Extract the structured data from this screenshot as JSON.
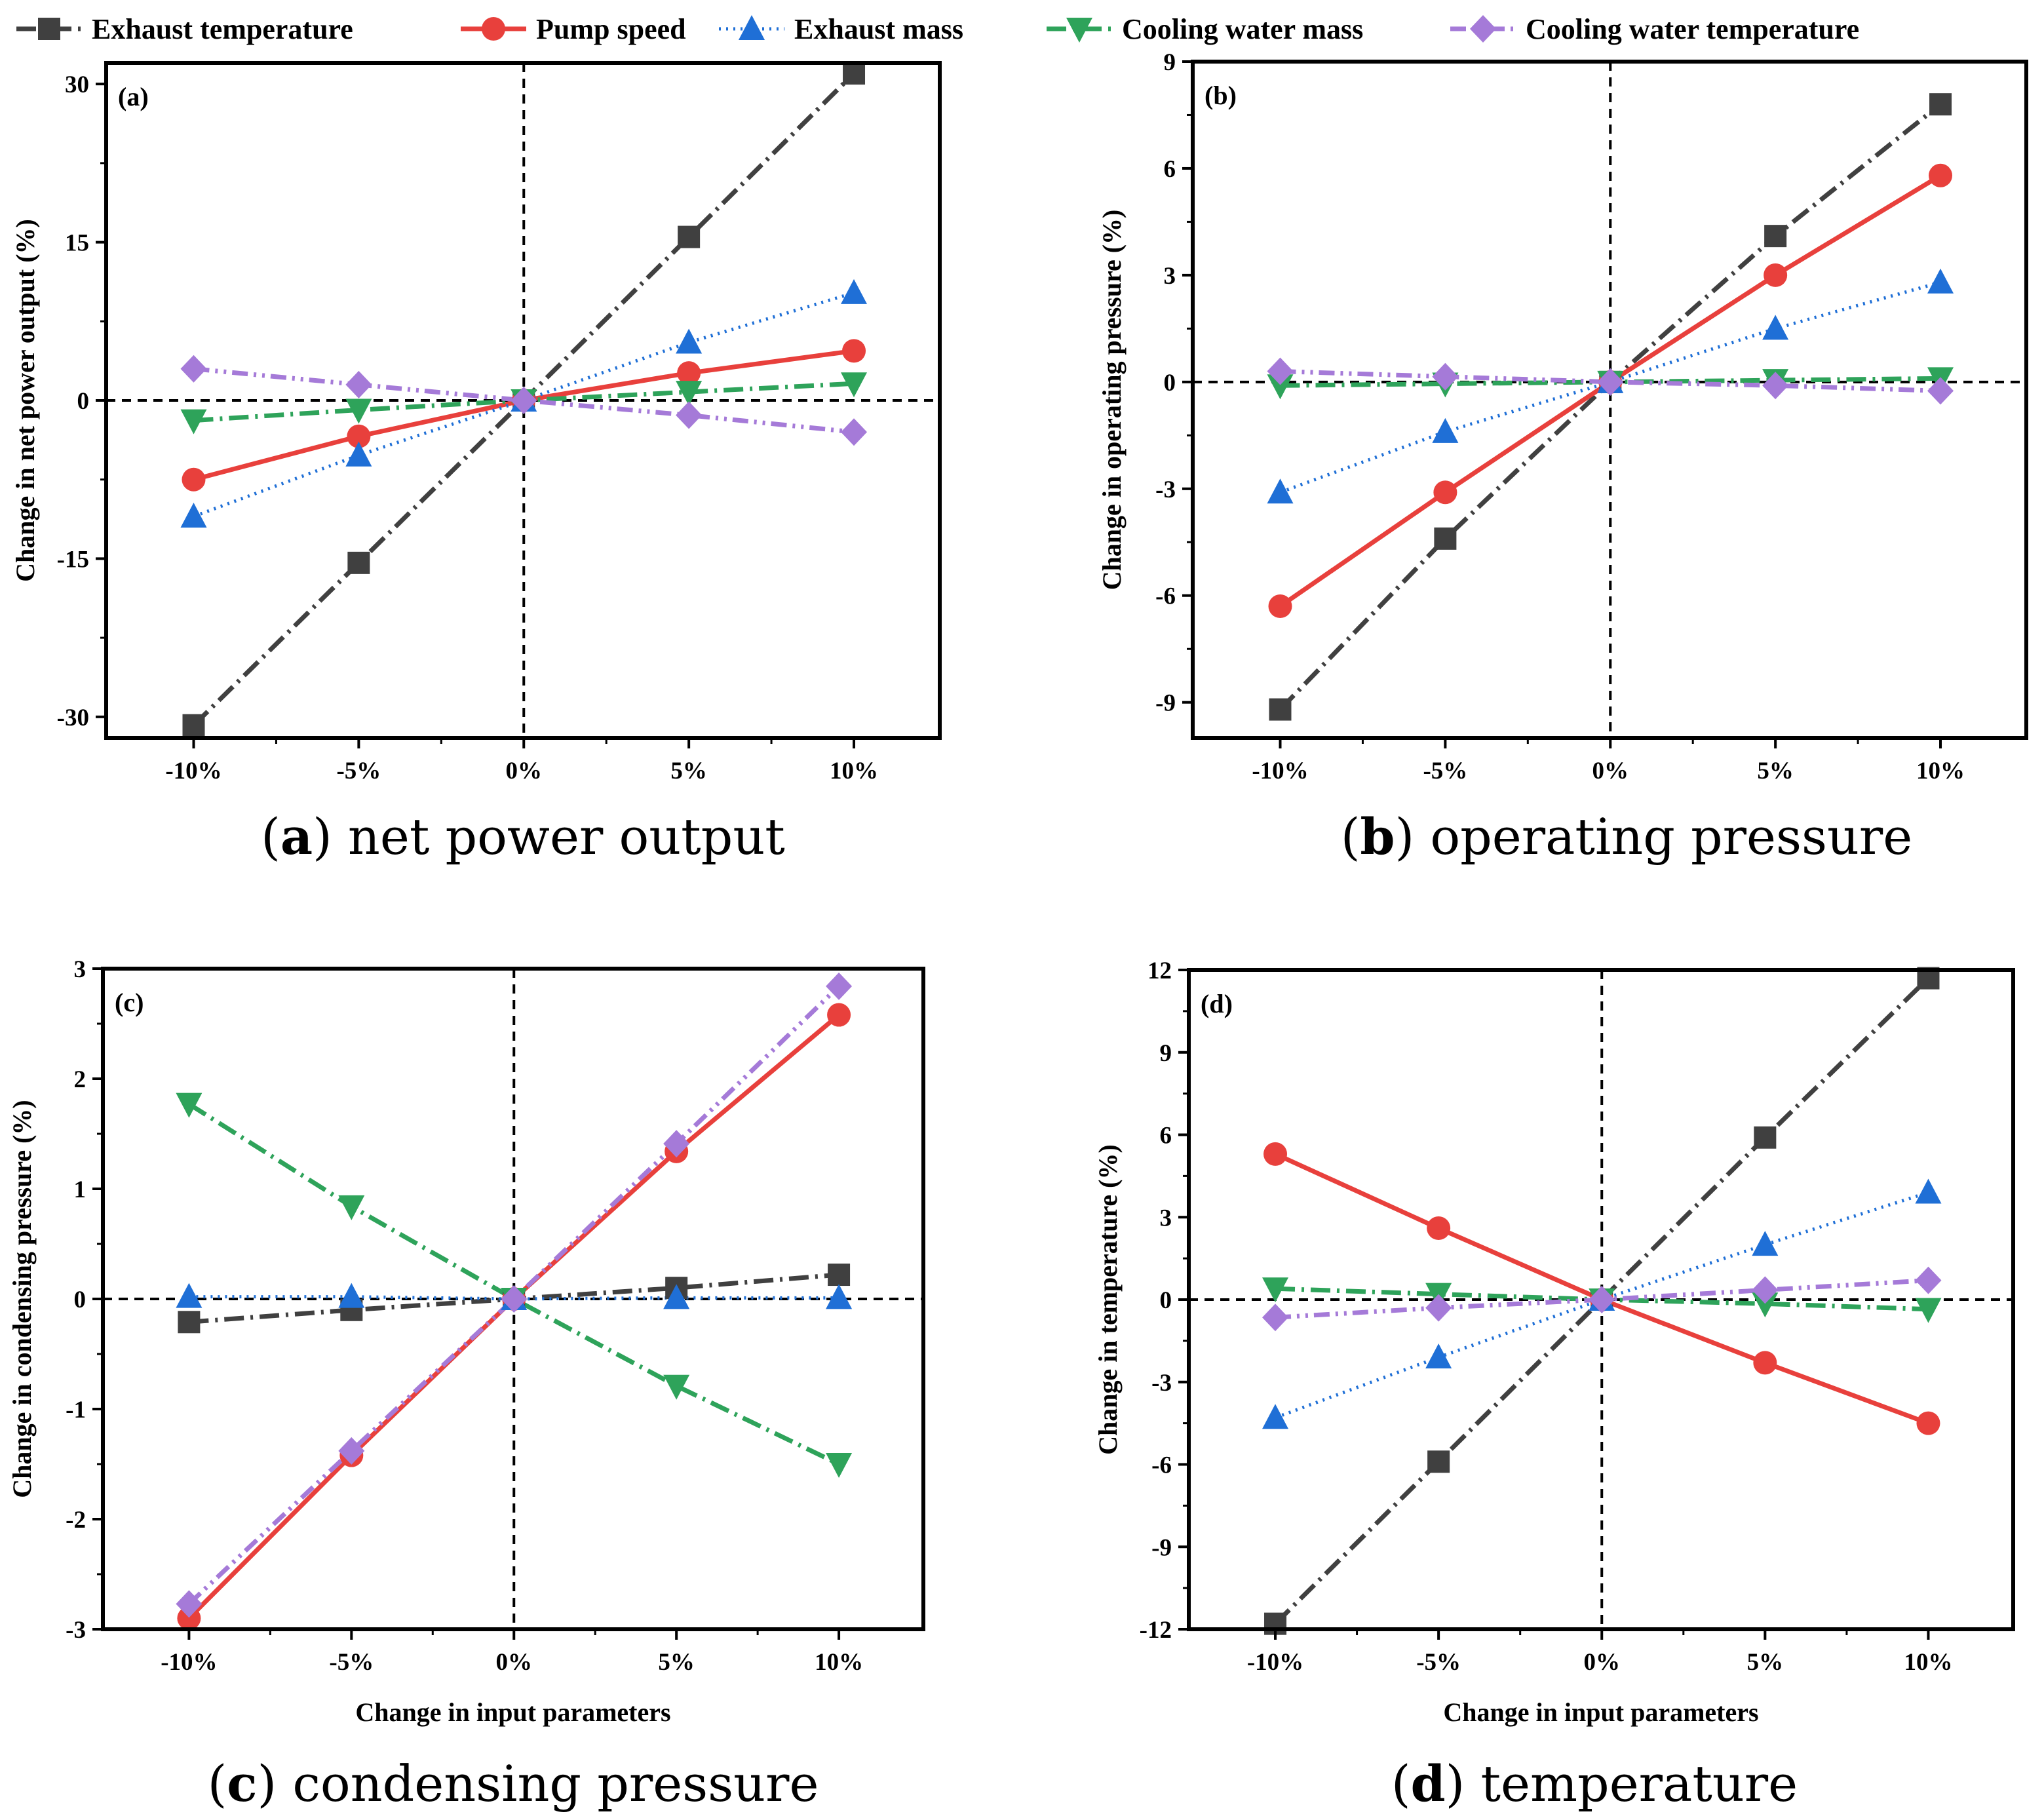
{
  "legend": [
    {
      "name": "Exhaust temperature",
      "color": "#404040",
      "marker": "square",
      "dash": "dash-dot"
    },
    {
      "name": "Pump speed",
      "color": "#e8403c",
      "marker": "circle",
      "dash": "solid"
    },
    {
      "name": "Exhaust mass",
      "color": "#1f6fd6",
      "marker": "triangle-up",
      "dash": "dot"
    },
    {
      "name": "Cooling water mass",
      "color": "#2ea35a",
      "marker": "triangle-down",
      "dash": "dash-dot"
    },
    {
      "name": "Cooling water temperature",
      "color": "#a57ad8",
      "marker": "diamond",
      "dash": "dash-dot-dot"
    }
  ],
  "chart_data": [
    {
      "type": "line",
      "tag": "(a)",
      "caption": {
        "letter": "a",
        "text": "net power output"
      },
      "categories": [
        "-10%",
        "-5%",
        "0%",
        "5%",
        "10%"
      ],
      "xlabel": "",
      "ylabel": "Change in net power output (%)",
      "ylim": [
        -32,
        32
      ],
      "yticks": [
        -30,
        -15,
        0,
        15,
        30
      ],
      "yticklabels": [
        "-30",
        "-15",
        "0",
        "15",
        "30"
      ],
      "series": [
        {
          "name": "Exhaust temperature",
          "values": [
            -30.8,
            -15.4,
            0,
            15.5,
            31
          ]
        },
        {
          "name": "Pump speed",
          "values": [
            -7.5,
            -3.4,
            0,
            2.6,
            4.7
          ]
        },
        {
          "name": "Exhaust mass",
          "values": [
            -11,
            -5.2,
            0,
            5.5,
            10.2
          ]
        },
        {
          "name": "Cooling water mass",
          "values": [
            -1.9,
            -0.9,
            0,
            0.8,
            1.6
          ]
        },
        {
          "name": "Cooling water temperature",
          "values": [
            3,
            1.5,
            0,
            -1.4,
            -3
          ]
        }
      ]
    },
    {
      "type": "line",
      "tag": "(b)",
      "caption": {
        "letter": "b",
        "text": "operating pressure"
      },
      "categories": [
        "-10%",
        "-5%",
        "0%",
        "5%",
        "10%"
      ],
      "xlabel": "",
      "ylabel": "Change in operating pressure (%)",
      "ylim": [
        -10,
        9
      ],
      "yticks": [
        -9,
        -6,
        -3,
        0,
        3,
        6,
        9
      ],
      "yticklabels": [
        "-9",
        "-6",
        "-3",
        "0",
        "3",
        "6",
        "9"
      ],
      "series": [
        {
          "name": "Exhaust temperature",
          "values": [
            -9.2,
            -4.4,
            0,
            4.1,
            7.8
          ]
        },
        {
          "name": "Pump speed",
          "values": [
            -6.3,
            -3.1,
            0,
            3,
            5.8
          ]
        },
        {
          "name": "Exhaust mass",
          "values": [
            -3.1,
            -1.4,
            0,
            1.5,
            2.8
          ]
        },
        {
          "name": "Cooling water mass",
          "values": [
            -0.1,
            -0.05,
            0,
            0.05,
            0.1
          ]
        },
        {
          "name": "Cooling water temperature",
          "values": [
            0.3,
            0.15,
            0,
            -0.1,
            -0.25
          ]
        }
      ]
    },
    {
      "type": "line",
      "tag": "(c)",
      "caption": {
        "letter": "c",
        "text": "condensing pressure"
      },
      "categories": [
        "-10%",
        "-5%",
        "0%",
        "5%",
        "10%"
      ],
      "xlabel": "Change in input parameters",
      "ylabel": "Change in condensing pressure (%)",
      "ylim": [
        -3,
        3
      ],
      "yticks": [
        -3,
        -2,
        -1,
        0,
        1,
        2,
        3
      ],
      "yticklabels": [
        "-3",
        "-2",
        "-1",
        "0",
        "1",
        "2",
        "3"
      ],
      "series": [
        {
          "name": "Exhaust temperature",
          "values": [
            -0.21,
            -0.1,
            0,
            0.1,
            0.22
          ]
        },
        {
          "name": "Pump speed",
          "values": [
            -2.9,
            -1.42,
            0,
            1.34,
            2.58
          ]
        },
        {
          "name": "Exhaust mass",
          "values": [
            0.02,
            0.02,
            0,
            0.01,
            0.01
          ]
        },
        {
          "name": "Cooling water mass",
          "values": [
            1.77,
            0.84,
            0,
            -0.79,
            -1.5
          ]
        },
        {
          "name": "Cooling water temperature",
          "values": [
            -2.77,
            -1.38,
            0,
            1.41,
            2.84
          ]
        }
      ]
    },
    {
      "type": "line",
      "tag": "(d)",
      "caption": {
        "letter": "d",
        "text": "temperature"
      },
      "categories": [
        "-10%",
        "-5%",
        "0%",
        "5%",
        "10%"
      ],
      "xlabel": "Change in input parameters",
      "ylabel": "Change in temperature (%)",
      "ylim": [
        -12,
        12
      ],
      "yticks": [
        -12,
        -9,
        -6,
        -3,
        0,
        3,
        6,
        9,
        12
      ],
      "yticklabels": [
        "-12",
        "-9",
        "-6",
        "-3",
        "0",
        "3",
        "6",
        "9",
        "12"
      ],
      "series": [
        {
          "name": "Exhaust temperature",
          "values": [
            -11.8,
            -5.9,
            0,
            5.9,
            11.7
          ]
        },
        {
          "name": "Pump speed",
          "values": [
            5.3,
            2.6,
            0,
            -2.3,
            -4.5
          ]
        },
        {
          "name": "Exhaust mass",
          "values": [
            -4.3,
            -2.1,
            0,
            2,
            3.9
          ]
        },
        {
          "name": "Cooling water mass",
          "values": [
            0.4,
            0.2,
            0,
            -0.15,
            -0.35
          ]
        },
        {
          "name": "Cooling water temperature",
          "values": [
            -0.65,
            -0.3,
            0,
            0.35,
            0.7
          ]
        }
      ]
    }
  ]
}
